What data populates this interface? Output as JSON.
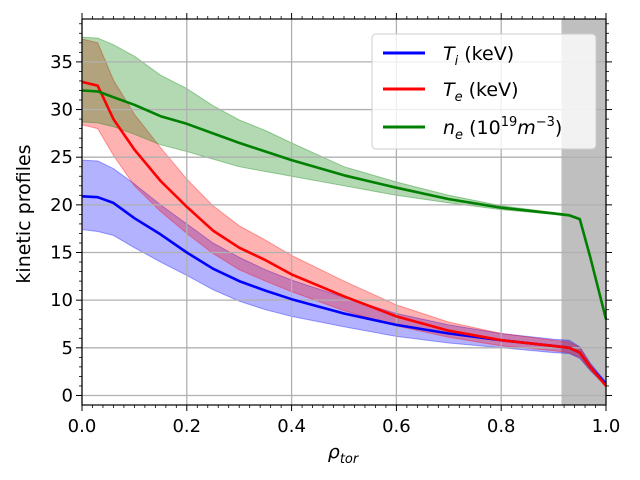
{
  "chart_data": {
    "type": "line",
    "title": "",
    "xlabel": "ρ",
    "xlabel_sub": "tor",
    "ylabel": "kinetic profiles",
    "xlim": [
      0.0,
      1.0
    ],
    "ylim": [
      -1,
      39.5
    ],
    "x_ticks": [
      0.0,
      0.2,
      0.4,
      0.6,
      0.8,
      1.0
    ],
    "x_tick_labels": [
      "0.0",
      "0.2",
      "0.4",
      "0.6",
      "0.8",
      "1.0"
    ],
    "y_ticks": [
      0,
      5,
      10,
      15,
      20,
      25,
      30,
      35
    ],
    "y_tick_labels": [
      "0",
      "5",
      "10",
      "15",
      "20",
      "25",
      "30",
      "35"
    ],
    "grid": true,
    "legend_position": "top-right",
    "shaded_region": {
      "x_start": 0.915,
      "x_end": 1.0,
      "color": "#808080"
    },
    "x": [
      0.0,
      0.03,
      0.06,
      0.1,
      0.15,
      0.2,
      0.25,
      0.3,
      0.35,
      0.4,
      0.5,
      0.6,
      0.7,
      0.8,
      0.9,
      0.93,
      0.95,
      0.97,
      1.0
    ],
    "series": [
      {
        "name": "T_i (keV)",
        "label_main": "T",
        "label_sub": "i",
        "label_rest": " (keV)",
        "color": "#0000ff",
        "values": [
          20.9,
          20.8,
          20.2,
          18.6,
          16.9,
          15.0,
          13.3,
          12.0,
          11.0,
          10.1,
          8.6,
          7.4,
          6.5,
          5.8,
          5.2,
          5.0,
          4.5,
          3.0,
          1.2
        ],
        "lower": [
          17.4,
          17.2,
          16.8,
          15.5,
          14.0,
          12.6,
          11.1,
          9.9,
          9.0,
          8.3,
          7.2,
          6.2,
          5.5,
          5.0,
          4.5,
          4.4,
          3.9,
          2.6,
          1.0
        ],
        "upper": [
          24.7,
          24.6,
          23.8,
          22.2,
          20.0,
          18.0,
          16.0,
          14.5,
          13.2,
          12.1,
          10.3,
          8.6,
          7.4,
          6.5,
          5.9,
          5.8,
          5.1,
          3.4,
          1.4
        ]
      },
      {
        "name": "T_e (keV)",
        "label_main": "T",
        "label_sub": "e",
        "label_rest": " (keV)",
        "color": "#ff0000",
        "values": [
          32.9,
          32.5,
          29.0,
          25.8,
          22.5,
          19.8,
          17.3,
          15.5,
          14.2,
          12.7,
          10.4,
          8.3,
          6.8,
          5.8,
          5.2,
          5.0,
          4.5,
          3.0,
          1.0
        ],
        "lower": [
          28.4,
          28.0,
          25.2,
          22.0,
          19.3,
          17.0,
          14.9,
          13.2,
          12.0,
          10.9,
          8.9,
          7.3,
          6.1,
          5.2,
          4.7,
          4.5,
          4.0,
          2.7,
          0.9
        ],
        "upper": [
          37.4,
          37.0,
          33.1,
          29.5,
          26.0,
          22.7,
          19.9,
          17.8,
          16.3,
          14.7,
          12.0,
          9.5,
          7.7,
          6.5,
          5.8,
          5.6,
          5.0,
          3.3,
          1.1
        ]
      },
      {
        "name": "n_e (10^19 m^-3)",
        "label_main": "n",
        "label_sub": "e",
        "label_rest_1": " (10",
        "label_sup_1": "19",
        "label_rest_2": "m",
        "label_sup_2": "−3",
        "label_rest_3": ")",
        "color": "#008000",
        "values": [
          32.0,
          31.9,
          31.3,
          30.5,
          29.3,
          28.5,
          27.5,
          26.5,
          25.6,
          24.7,
          23.1,
          21.8,
          20.6,
          19.7,
          19.1,
          18.9,
          18.5,
          14.5,
          8.0
        ],
        "lower": [
          28.7,
          28.6,
          28.2,
          27.4,
          26.3,
          25.6,
          24.8,
          24.0,
          23.5,
          23.0,
          22.0,
          21.0,
          20.2,
          19.5,
          19.0,
          18.8,
          18.4,
          14.4,
          7.9
        ],
        "upper": [
          37.6,
          37.5,
          36.8,
          35.6,
          33.6,
          32.2,
          30.4,
          28.9,
          27.8,
          26.5,
          24.0,
          22.4,
          21.0,
          19.9,
          19.2,
          19.0,
          18.6,
          14.6,
          8.1
        ]
      }
    ]
  }
}
